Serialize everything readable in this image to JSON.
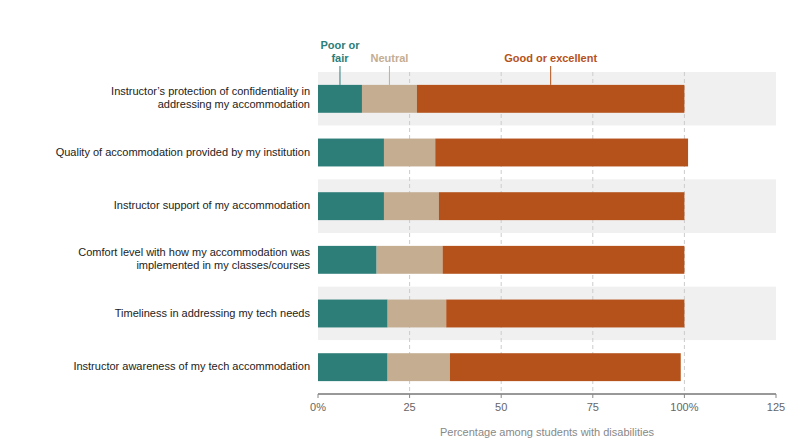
{
  "chart_data": {
    "type": "bar",
    "orientation": "horizontal",
    "stacked": true,
    "categories": [
      "Instructor’s protection of confidentiality in\naddressing my accommodation",
      "Quality of accommodation provided by my institution",
      "Instructor support of my accommodation",
      "Comfort level with how my accommodation was\nimplemented in my classes/courses",
      "Timeliness in addressing my tech needs",
      "Instructor awareness of my tech accommodation"
    ],
    "series": [
      {
        "name": "Poor or\nfair",
        "color": "#2d7d78",
        "values": [
          12,
          18,
          18,
          16,
          19,
          19
        ]
      },
      {
        "name": "Neutral",
        "color": "#c4ad91",
        "values": [
          15,
          14,
          15,
          18,
          16,
          17
        ]
      },
      {
        "name": "Good or excellent",
        "color": "#b5521b",
        "values": [
          73,
          69,
          67,
          66,
          65,
          63
        ]
      }
    ],
    "x_label": "Percentage among students with disabilities",
    "xlim": [
      0,
      125
    ],
    "xticks": [
      {
        "value": 0,
        "label": "0%"
      },
      25,
      50,
      75,
      {
        "value": 100,
        "label": "100%"
      },
      125
    ],
    "grid": true
  }
}
